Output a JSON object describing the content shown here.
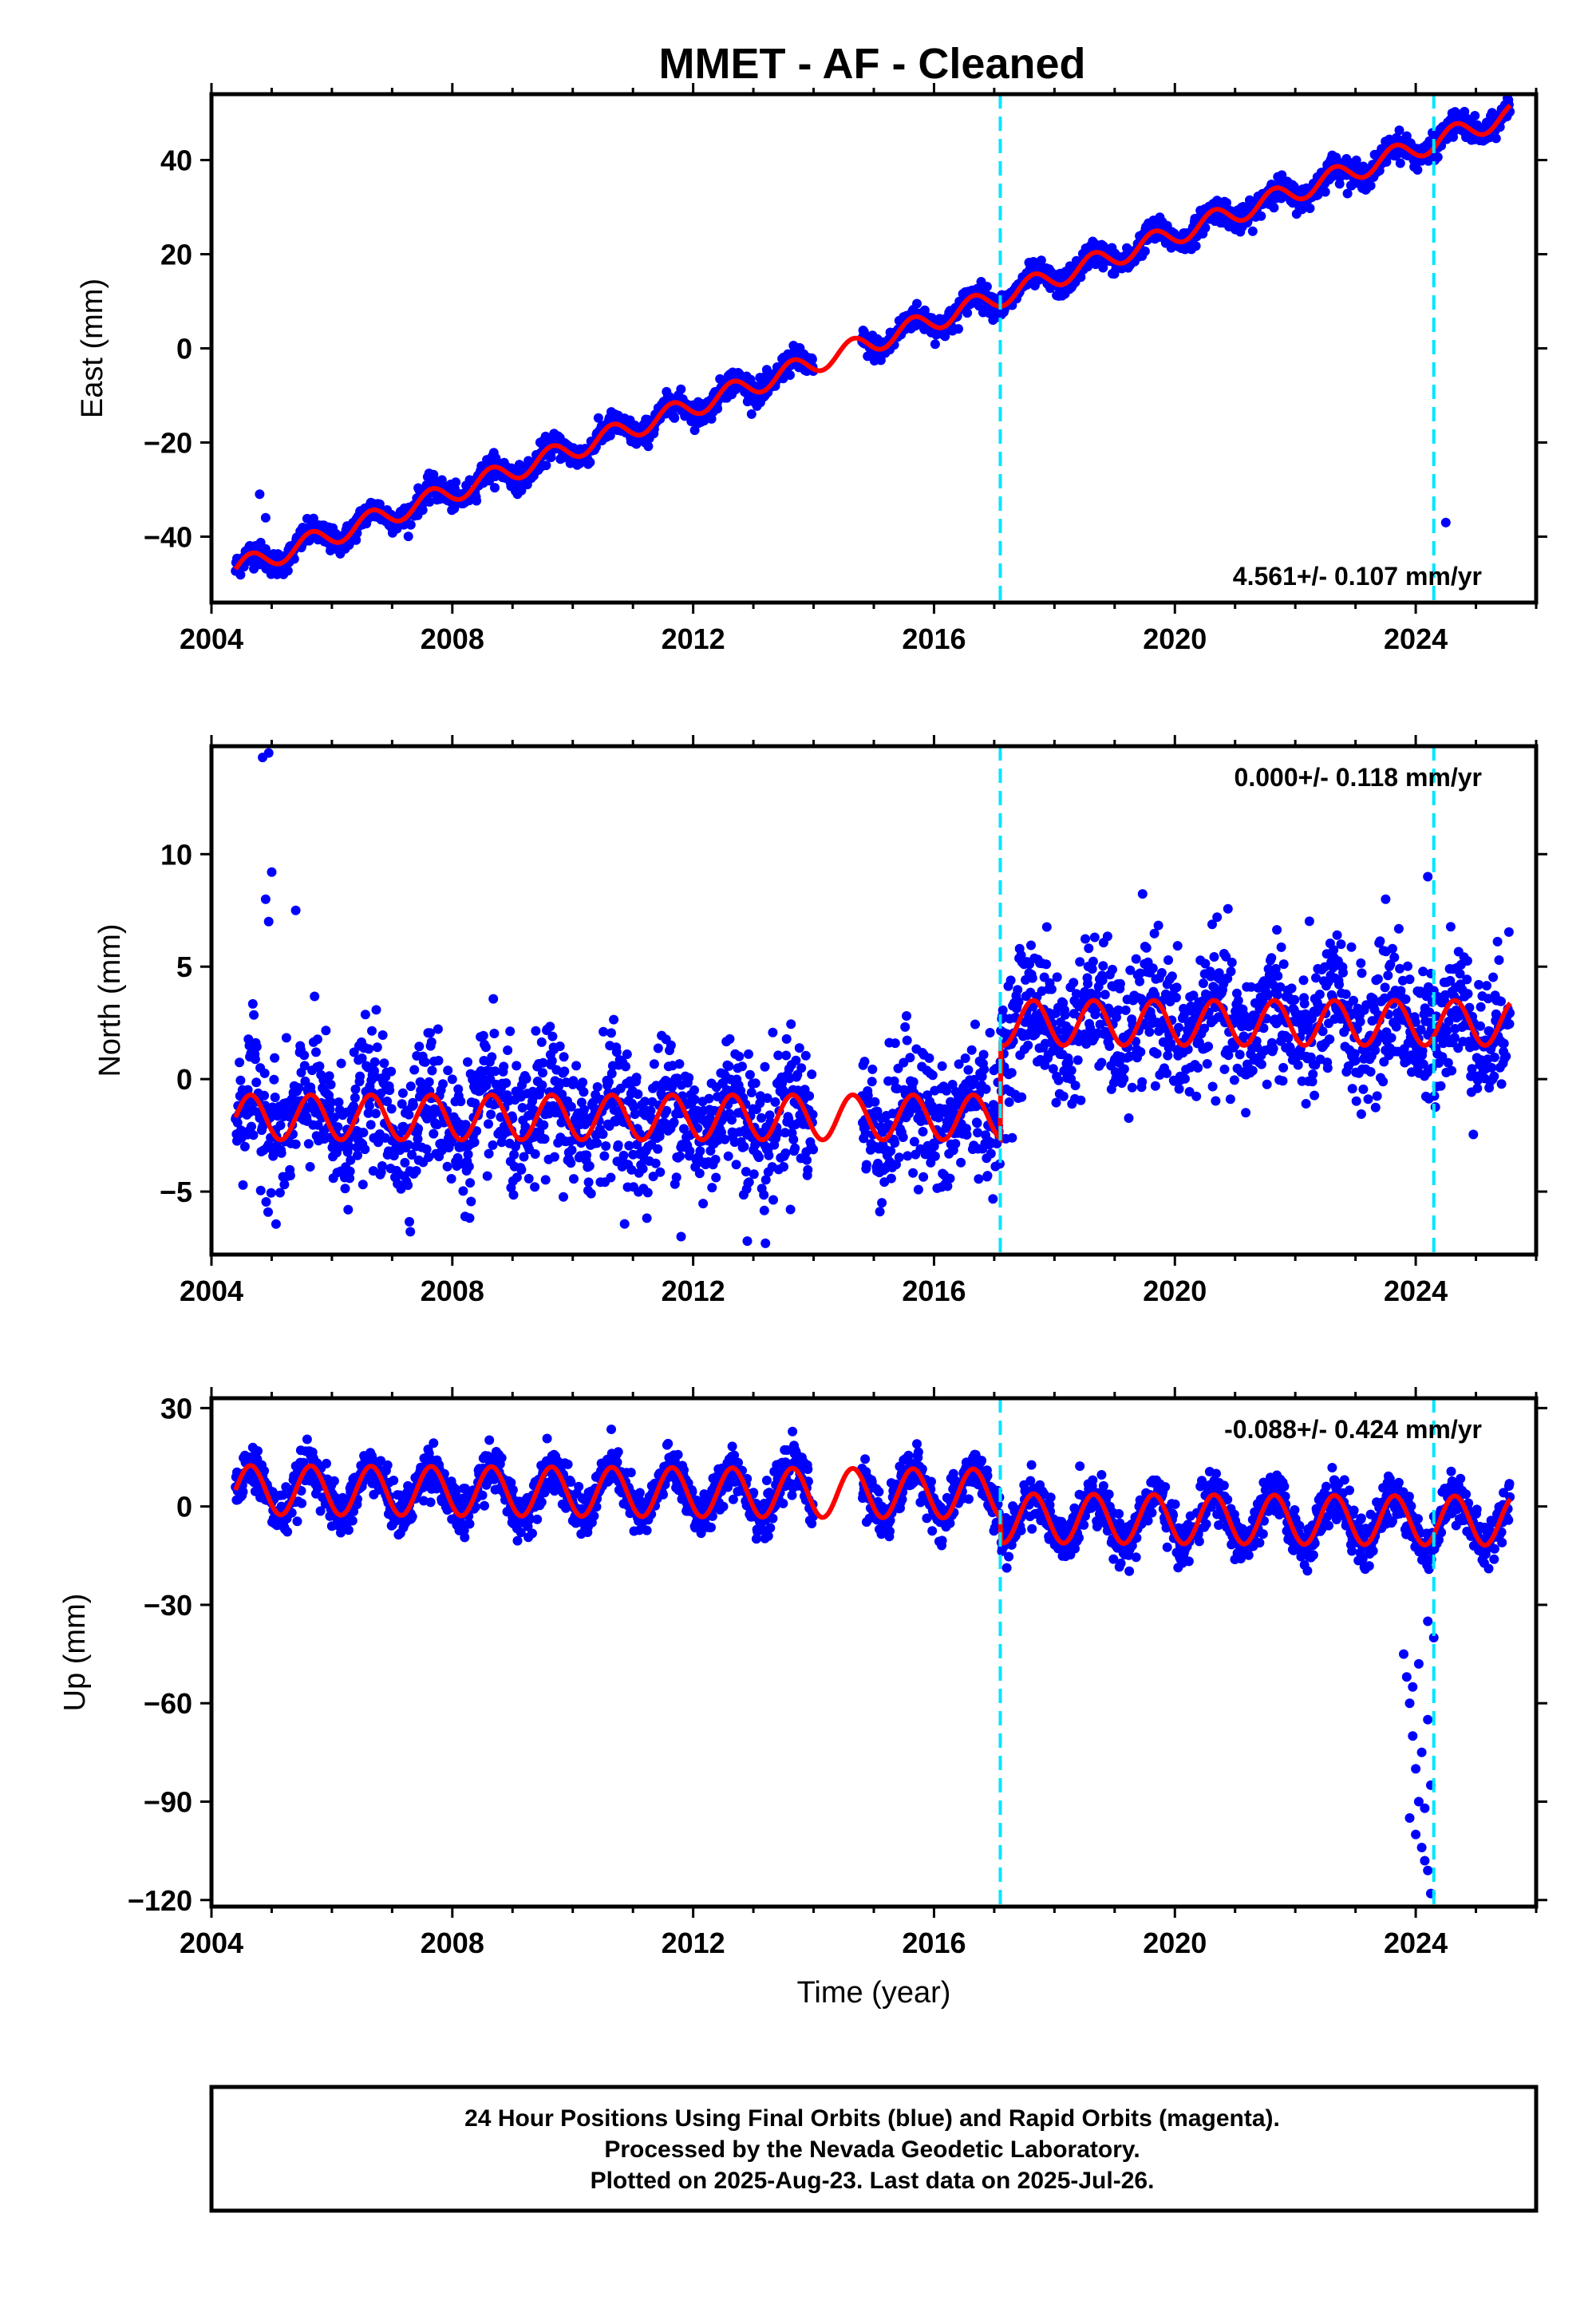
{
  "title": "MMET  - AF - Cleaned",
  "colors": {
    "data": "#0000ff",
    "model": "#ff0000",
    "step": "#00e5ff",
    "frame": "#000000"
  },
  "chart_data": [
    {
      "type": "scatter",
      "component": "east",
      "ylabel": "East (mm)",
      "xlim": [
        2004.0,
        2026.0
      ],
      "ylim": [
        -54,
        54
      ],
      "xticks": [
        2004,
        2008,
        2012,
        2016,
        2020,
        2024
      ],
      "yticks": [
        -40,
        -20,
        0,
        20,
        40
      ],
      "rate_label": "4.561+/- 0.107 mm/yr",
      "rate_position": "bottom-right",
      "step_lines": [
        2017.1,
        2024.3
      ],
      "model": {
        "base": -46.9,
        "t0": 2004.4,
        "rate": 4.561,
        "annual_amp": 2.2,
        "steps": []
      },
      "gaps": [
        [
          2014.0,
          2014.8
        ]
      ],
      "scatter_sigma": 1.3,
      "outliers": [
        [
          2004.8,
          -31
        ],
        [
          2004.9,
          -36
        ],
        [
          2024.5,
          -37
        ]
      ]
    },
    {
      "type": "scatter",
      "component": "north",
      "ylabel": "North (mm)",
      "xlim": [
        2004.0,
        2026.0
      ],
      "ylim": [
        -7.8,
        14.8
      ],
      "xticks": [
        2004,
        2008,
        2012,
        2016,
        2020,
        2024
      ],
      "yticks": [
        -5,
        0,
        5,
        10
      ],
      "rate_label": "0.000+/- 0.118 mm/yr",
      "rate_position": "top-right",
      "step_lines": [
        2017.1,
        2024.3
      ],
      "model": {
        "base": -1.7,
        "t0": 2004.4,
        "rate": 0.0,
        "annual_amp": 1.0,
        "steps": [
          [
            2017.1,
            4.2
          ]
        ]
      },
      "gaps": [
        [
          2014.0,
          2014.8
        ]
      ],
      "scatter_sigma": 1.5,
      "outliers": [
        [
          2004.85,
          14.3
        ],
        [
          2004.95,
          14.5
        ],
        [
          2005.0,
          9.2
        ],
        [
          2004.9,
          8.0
        ],
        [
          2004.95,
          7.0
        ],
        [
          2005.4,
          7.5
        ],
        [
          2024.2,
          9.0
        ],
        [
          2023.5,
          8.0
        ],
        [
          2012.9,
          -7.2
        ],
        [
          2013.2,
          -7.3
        ],
        [
          2011.8,
          -7.0
        ]
      ]
    },
    {
      "type": "scatter",
      "component": "up",
      "ylabel": "Up (mm)",
      "xlabel": "Time (year)",
      "xlim": [
        2004.0,
        2026.0
      ],
      "ylim": [
        -122,
        33
      ],
      "xticks": [
        2004,
        2008,
        2012,
        2016,
        2020,
        2024
      ],
      "yticks": [
        -120,
        -90,
        -60,
        -30,
        0,
        30
      ],
      "rate_label": "-0.088+/- 0.424 mm/yr",
      "rate_position": "top-right",
      "step_lines": [
        2017.1,
        2024.3
      ],
      "model": {
        "base": 5.0,
        "t0": 2004.4,
        "rate": -0.088,
        "annual_amp": 7.5,
        "steps": [
          [
            2017.1,
            -7.5
          ]
        ]
      },
      "gaps": [
        [
          2014.0,
          2014.8
        ]
      ],
      "scatter_sigma": 3.5,
      "outliers": [
        [
          2023.8,
          -45
        ],
        [
          2023.85,
          -52
        ],
        [
          2023.9,
          -60
        ],
        [
          2023.95,
          -70
        ],
        [
          2024.0,
          -80
        ],
        [
          2024.05,
          -90
        ],
        [
          2023.9,
          -95
        ],
        [
          2024.0,
          -100
        ],
        [
          2024.1,
          -104
        ],
        [
          2024.15,
          -108
        ],
        [
          2024.2,
          -111
        ],
        [
          2024.25,
          -118
        ],
        [
          2024.1,
          -75
        ],
        [
          2024.2,
          -65
        ],
        [
          2023.95,
          -55
        ],
        [
          2024.05,
          -48
        ],
        [
          2024.2,
          -35
        ],
        [
          2024.3,
          -40
        ],
        [
          2024.25,
          -85
        ],
        [
          2024.15,
          -92
        ]
      ]
    }
  ],
  "footer": {
    "line1": "24 Hour Positions Using Final Orbits (blue) and Rapid Orbits (magenta).",
    "line2": "Processed by the Nevada Geodetic Laboratory.",
    "line3": "Plotted on 2025-Aug-23. Last data on 2025-Jul-26."
  }
}
